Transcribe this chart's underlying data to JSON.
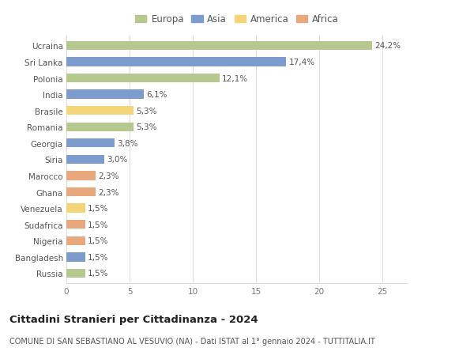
{
  "countries": [
    "Ucraina",
    "Sri Lanka",
    "Polonia",
    "India",
    "Brasile",
    "Romania",
    "Georgia",
    "Siria",
    "Marocco",
    "Ghana",
    "Venezuela",
    "Sudafrica",
    "Nigeria",
    "Bangladesh",
    "Russia"
  ],
  "values": [
    24.2,
    17.4,
    12.1,
    6.1,
    5.3,
    5.3,
    3.8,
    3.0,
    2.3,
    2.3,
    1.5,
    1.5,
    1.5,
    1.5,
    1.5
  ],
  "labels": [
    "24,2%",
    "17,4%",
    "12,1%",
    "6,1%",
    "5,3%",
    "5,3%",
    "3,8%",
    "3,0%",
    "2,3%",
    "2,3%",
    "1,5%",
    "1,5%",
    "1,5%",
    "1,5%",
    "1,5%"
  ],
  "continents": [
    "Europa",
    "Asia",
    "Europa",
    "Asia",
    "America",
    "Europa",
    "Asia",
    "Asia",
    "Africa",
    "Africa",
    "America",
    "Africa",
    "Africa",
    "Asia",
    "Europa"
  ],
  "continent_colors": {
    "Europa": "#b5c98e",
    "Asia": "#7b9ccc",
    "America": "#f5d57a",
    "Africa": "#e8a87c"
  },
  "legend_order": [
    "Europa",
    "Asia",
    "America",
    "Africa"
  ],
  "xlim": [
    0,
    27
  ],
  "xticks": [
    0,
    5,
    10,
    15,
    20,
    25
  ],
  "title": "Cittadini Stranieri per Cittadinanza - 2024",
  "subtitle": "COMUNE DI SAN SEBASTIANO AL VESUVIO (NA) - Dati ISTAT al 1° gennaio 2024 - TUTTITALIA.IT",
  "background_color": "#ffffff",
  "grid_color": "#dddddd",
  "bar_height": 0.55,
  "label_fontsize": 7.5,
  "ytick_fontsize": 7.5,
  "xtick_fontsize": 7.5,
  "title_fontsize": 9.5,
  "subtitle_fontsize": 7.0,
  "legend_fontsize": 8.5
}
